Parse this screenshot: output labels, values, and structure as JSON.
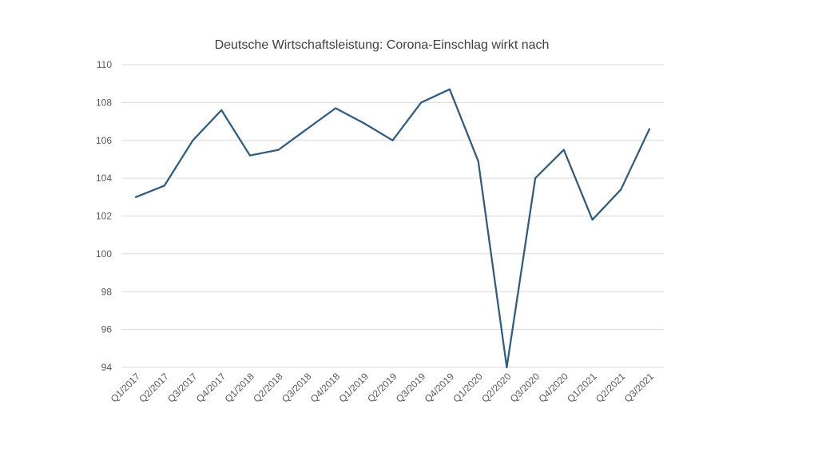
{
  "chart_data": {
    "type": "line",
    "title": "Deutsche Wirtschaftsleistung: Corona-Einschlag wirkt nach",
    "xlabel": "",
    "ylabel": "",
    "categories": [
      "Q1/2017",
      "Q2/2017",
      "Q3/2017",
      "Q4/2017",
      "Q1/2018",
      "Q2/2018",
      "Q3/2018",
      "Q4/2018",
      "Q1/2019",
      "Q2/2019",
      "Q3/2019",
      "Q4/2019",
      "Q1/2020",
      "Q2/2020",
      "Q3/2020",
      "Q4/2020",
      "Q1/2021",
      "Q2/2021",
      "Q3/2021"
    ],
    "series": [
      {
        "values": [
          103.0,
          103.6,
          106.0,
          107.6,
          105.2,
          105.5,
          106.6,
          107.7,
          106.9,
          106.0,
          108.0,
          108.7,
          104.9,
          94.0,
          104.0,
          105.5,
          101.8,
          103.4,
          106.6
        ],
        "color": "#2e5b80"
      }
    ],
    "ylim": [
      94,
      110
    ],
    "yticks": [
      94,
      96,
      98,
      100,
      102,
      104,
      106,
      108,
      110
    ],
    "grid": true,
    "legend": "none"
  }
}
